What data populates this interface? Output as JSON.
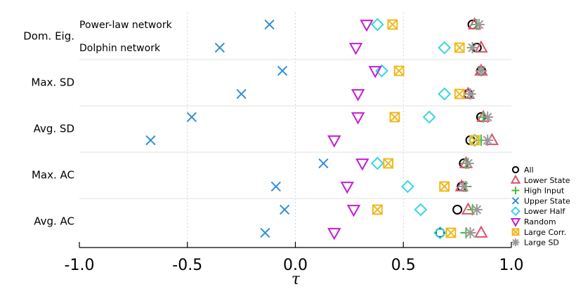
{
  "chart_data": {
    "type": "scatter",
    "xlabel": "τ",
    "xlim": [
      -1.0,
      1.0
    ],
    "x_ticks": [
      "-1.0",
      "-0.5",
      "0.0",
      "0.5",
      "1.0"
    ],
    "x_tick_values": [
      -1.0,
      -0.5,
      0.0,
      0.5,
      1.0
    ],
    "grid": true,
    "legend": "right",
    "row_groups": [
      "Dom. Eig.",
      "Max. SD",
      "Avg. SD",
      "Max. AC",
      "Avg. AC"
    ],
    "network_labels": [
      "Power-law network",
      "Dolphin network"
    ],
    "series": [
      {
        "name": "All",
        "marker": "circle",
        "color": "#000000",
        "powerlaw": [
          0.82,
          0.86,
          0.86,
          0.78,
          0.75
        ],
        "dolphin": [
          0.84,
          0.8,
          0.81,
          0.77,
          0.67
        ]
      },
      {
        "name": "Lower State",
        "marker": "triangle-up",
        "color": "#d9536b",
        "powerlaw": [
          0.83,
          0.86,
          0.87,
          0.79,
          0.8
        ],
        "dolphin": [
          0.86,
          0.8,
          0.91,
          0.77,
          0.86
        ]
      },
      {
        "name": "High Input",
        "marker": "plus",
        "color": "#4cbb3a",
        "powerlaw": [
          0.84,
          0.86,
          0.87,
          0.79,
          0.82
        ],
        "dolphin": [
          0.82,
          0.81,
          0.86,
          0.79,
          0.79
        ]
      },
      {
        "name": "Upper State",
        "marker": "x",
        "color": "#2f8fd8",
        "powerlaw": [
          -0.12,
          -0.06,
          -0.48,
          0.13,
          -0.05
        ],
        "dolphin": [
          -0.35,
          -0.25,
          -0.67,
          -0.09,
          -0.14
        ]
      },
      {
        "name": "Lower Half",
        "marker": "diamond",
        "color": "#3ad6e0",
        "powerlaw": [
          0.38,
          0.4,
          0.62,
          0.38,
          0.58
        ],
        "dolphin": [
          0.69,
          0.69,
          0.83,
          0.52,
          0.67
        ]
      },
      {
        "name": "Random",
        "marker": "triangle-down",
        "color": "#c21fcf",
        "powerlaw": [
          0.33,
          0.37,
          0.29,
          0.31,
          0.27
        ],
        "dolphin": [
          0.28,
          0.29,
          0.18,
          0.24,
          0.18
        ]
      },
      {
        "name": "Large Corr.",
        "marker": "boxx",
        "color": "#f0b81c",
        "powerlaw": [
          0.45,
          0.48,
          0.46,
          0.43,
          0.38
        ],
        "dolphin": [
          0.76,
          0.76,
          0.83,
          0.69,
          0.72
        ]
      },
      {
        "name": "Large SD",
        "marker": "asterisk",
        "color": "#999999",
        "powerlaw": [
          0.85,
          0.86,
          0.89,
          0.8,
          0.84
        ],
        "dolphin": [
          0.82,
          0.81,
          0.89,
          0.78,
          0.81
        ]
      }
    ]
  }
}
